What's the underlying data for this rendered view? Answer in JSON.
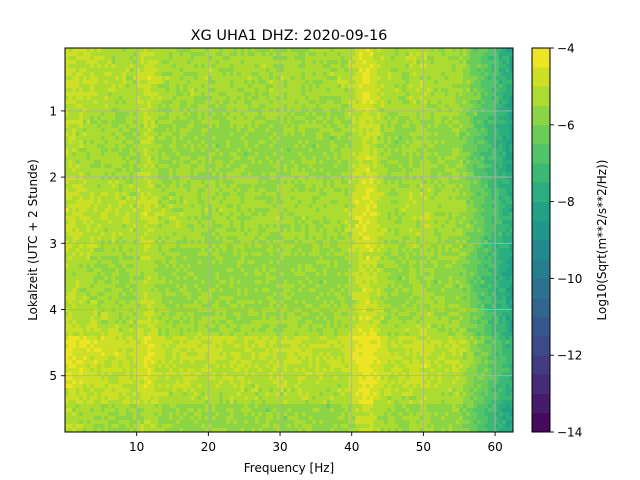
{
  "chart_data": {
    "type": "heatmap",
    "title": "XG UHA1  DHZ: 2020-09-16",
    "xlabel": "Frequency [Hz]",
    "ylabel": "Lokalzeit (UTC + 2 Stunde)",
    "xlim": [
      0,
      62.5
    ],
    "ylim": [
      5.85,
      0.05
    ],
    "y_inverted": true,
    "grid": true,
    "x_ticks": [
      10,
      20,
      30,
      40,
      50,
      60
    ],
    "y_ticks": [
      1,
      2,
      3,
      4,
      5
    ],
    "colorbar": {
      "label": "Log10(Sqrt(m**2/s**2/Hz))",
      "colormap": "viridis",
      "levels": 20,
      "range": [
        -14,
        -4
      ],
      "ticks": [
        -4,
        -6,
        -8,
        -10,
        -12,
        -14
      ]
    },
    "features": {
      "baseline_value": -5.5,
      "high_frequency_rolloff_start_hz": 55,
      "high_frequency_min_value": -8,
      "vertical_bands_hz": [
        11.5,
        42,
        48.5,
        50.3
      ],
      "horizontal_band_hours": [
        4.4,
        5.4
      ]
    }
  }
}
